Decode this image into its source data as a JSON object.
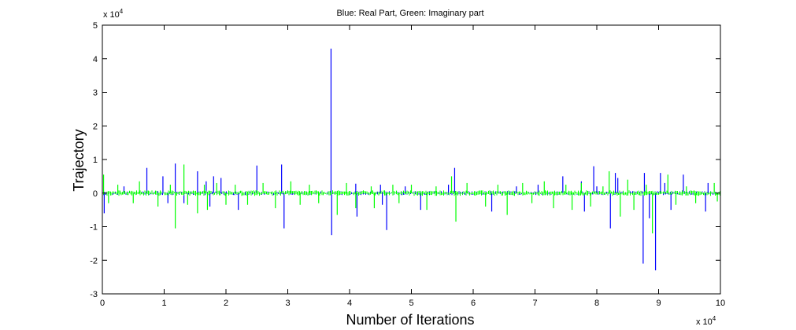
{
  "chart_data": {
    "type": "line",
    "title": "Blue: Real Part, Green: Imaginary part",
    "xlabel": "Number of Iterations",
    "ylabel": "Trajectory",
    "x_multiplier": "x 10",
    "x_multiplier_exp": "4",
    "y_multiplier": "x 10",
    "y_multiplier_exp": "4",
    "xlim": [
      0,
      100000
    ],
    "ylim": [
      -30000,
      50000
    ],
    "xticks": [
      0,
      10000,
      20000,
      30000,
      40000,
      50000,
      60000,
      70000,
      80000,
      90000,
      100000
    ],
    "xtick_labels": [
      "0",
      "1",
      "2",
      "3",
      "4",
      "5",
      "6",
      "7",
      "8",
      "9",
      "10"
    ],
    "yticks": [
      -30000,
      -20000,
      -10000,
      0,
      10000,
      20000,
      30000,
      40000,
      50000
    ],
    "ytick_labels": [
      "-3",
      "-2",
      "-1",
      "0",
      "1",
      "2",
      "3",
      "4",
      "5"
    ],
    "grid": false,
    "legend": "none",
    "series": [
      {
        "color": "#0000ff",
        "spikes": [
          [
            300,
            -6000
          ],
          [
            3500,
            2000
          ],
          [
            7200,
            7500
          ],
          [
            9800,
            5000
          ],
          [
            10600,
            -3000
          ],
          [
            11800,
            8800
          ],
          [
            13200,
            -3000
          ],
          [
            15400,
            6500
          ],
          [
            16800,
            3500
          ],
          [
            17400,
            -4000
          ],
          [
            18000,
            5000
          ],
          [
            19200,
            4500
          ],
          [
            22000,
            -5000
          ],
          [
            25000,
            8200
          ],
          [
            29000,
            8500
          ],
          [
            29400,
            -10500
          ],
          [
            37000,
            43000
          ],
          [
            37100,
            -12500
          ],
          [
            41000,
            2800
          ],
          [
            41200,
            -7000
          ],
          [
            45000,
            2500
          ],
          [
            45300,
            -3500
          ],
          [
            46000,
            -11000
          ],
          [
            49000,
            2000
          ],
          [
            51500,
            -5000
          ],
          [
            56000,
            2500
          ],
          [
            57000,
            7500
          ],
          [
            63000,
            -5500
          ],
          [
            67000,
            2000
          ],
          [
            70500,
            2500
          ],
          [
            74500,
            5000
          ],
          [
            77500,
            3500
          ],
          [
            78000,
            -5500
          ],
          [
            79500,
            8000
          ],
          [
            80000,
            2000
          ],
          [
            82200,
            -10500
          ],
          [
            83000,
            6000
          ],
          [
            83400,
            4500
          ],
          [
            87500,
            -21000
          ],
          [
            87700,
            6000
          ],
          [
            88500,
            -7500
          ],
          [
            89500,
            -23000
          ],
          [
            90300,
            6000
          ],
          [
            91000,
            3000
          ],
          [
            92000,
            -5000
          ],
          [
            94000,
            5500
          ],
          [
            97600,
            -5500
          ],
          [
            98000,
            3000
          ]
        ]
      },
      {
        "color": "#00ff00",
        "spikes": [
          [
            200,
            5500
          ],
          [
            1000,
            -3000
          ],
          [
            2500,
            2500
          ],
          [
            5000,
            -3000
          ],
          [
            6000,
            3500
          ],
          [
            9000,
            -4000
          ],
          [
            11000,
            2500
          ],
          [
            11800,
            -10500
          ],
          [
            13200,
            8500
          ],
          [
            13800,
            -3500
          ],
          [
            15400,
            -6000
          ],
          [
            16500,
            2500
          ],
          [
            17000,
            -5000
          ],
          [
            18500,
            3000
          ],
          [
            20000,
            -3500
          ],
          [
            21500,
            2500
          ],
          [
            23500,
            -3500
          ],
          [
            26000,
            3000
          ],
          [
            28000,
            -4500
          ],
          [
            30500,
            3500
          ],
          [
            32000,
            -3500
          ],
          [
            33500,
            2500
          ],
          [
            35000,
            -3000
          ],
          [
            38000,
            -6500
          ],
          [
            39500,
            3000
          ],
          [
            41000,
            -4500
          ],
          [
            43500,
            2000
          ],
          [
            44000,
            -4500
          ],
          [
            47000,
            2500
          ],
          [
            48000,
            -3000
          ],
          [
            50000,
            2500
          ],
          [
            52500,
            -5000
          ],
          [
            54000,
            2000
          ],
          [
            56500,
            5000
          ],
          [
            57200,
            -8500
          ],
          [
            59000,
            3000
          ],
          [
            62000,
            -4000
          ],
          [
            64000,
            2500
          ],
          [
            65500,
            -6500
          ],
          [
            68000,
            3000
          ],
          [
            69500,
            -3000
          ],
          [
            71500,
            3500
          ],
          [
            73000,
            -4500
          ],
          [
            75000,
            2500
          ],
          [
            76000,
            -5000
          ],
          [
            77500,
            3000
          ],
          [
            79000,
            -4000
          ],
          [
            81000,
            2000
          ],
          [
            82000,
            6500
          ],
          [
            83800,
            -7000
          ],
          [
            85000,
            4000
          ],
          [
            86000,
            -5000
          ],
          [
            88000,
            2500
          ],
          [
            89000,
            -12000
          ],
          [
            91500,
            5500
          ],
          [
            92800,
            -3500
          ],
          [
            94500,
            2000
          ],
          [
            96000,
            -3000
          ],
          [
            99000,
            3000
          ],
          [
            99500,
            -2500
          ]
        ]
      }
    ]
  }
}
